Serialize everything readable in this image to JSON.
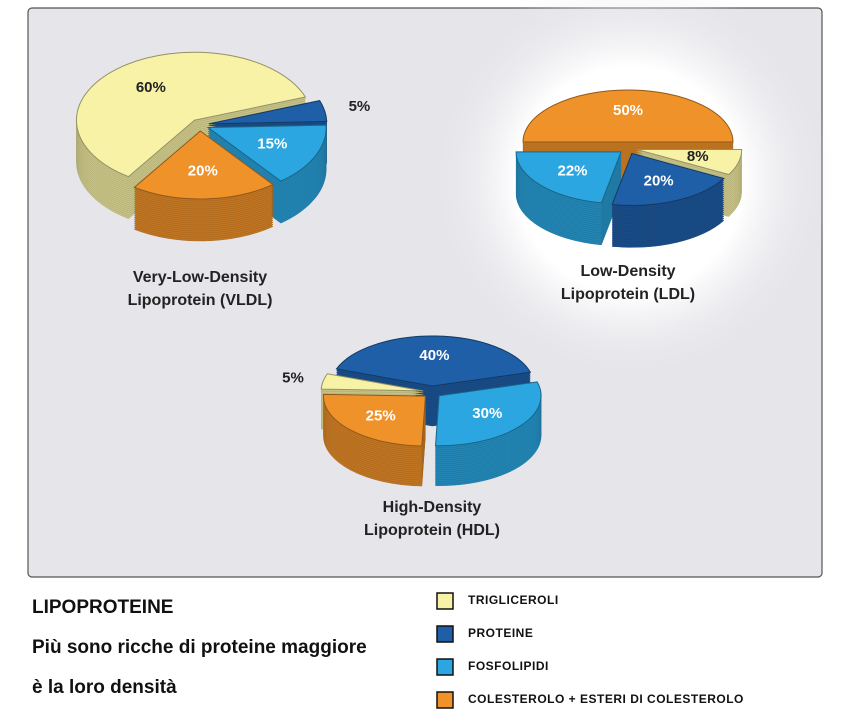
{
  "legend": [
    {
      "name": "TRIGLICEROLI",
      "color": "#f7f2a6"
    },
    {
      "name": "PROTEINE",
      "color": "#1f5fa8"
    },
    {
      "name": "FOSFOLIPIDI",
      "color": "#2ba6e0"
    },
    {
      "name": "COLESTEROLO + ESTERI DI COLESTEROLO",
      "color": "#f0922a"
    }
  ],
  "caption": {
    "title": "LIPOPROTEINE",
    "lines": [
      "Più sono ricche di proteine maggiore",
      "è la loro densità"
    ]
  },
  "chart_data": [
    {
      "type": "pie",
      "title": [
        "Very-Low-Density",
        "Lipoprotein (VLDL)"
      ],
      "values": [
        60,
        5,
        15,
        20
      ],
      "value_labels": [
        "60%",
        "5%",
        "15%",
        "20%"
      ]
    },
    {
      "type": "pie",
      "title": [
        "Low-Density",
        "Lipoprotein (LDL)"
      ],
      "values": [
        8,
        20,
        22,
        50
      ],
      "value_labels": [
        "8%",
        "20%",
        "22%",
        "50%"
      ]
    },
    {
      "type": "pie",
      "title": [
        "High-Density",
        "Lipoprotein (HDL)"
      ],
      "values": [
        5,
        40,
        30,
        25
      ],
      "value_labels": [
        "5%",
        "40%",
        "30%",
        "25%"
      ]
    }
  ]
}
